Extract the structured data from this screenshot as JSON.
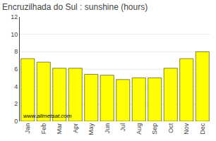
{
  "chart_data": {
    "type": "bar",
    "title": "Encruzilhada do Sul : sunshine (hours)",
    "categories": [
      "Jan",
      "Feb",
      "Mar",
      "Apr",
      "May",
      "Jun",
      "Jul",
      "Aug",
      "Sep",
      "Oct",
      "Nov",
      "Dec"
    ],
    "values": [
      7.2,
      6.8,
      6.1,
      6.1,
      5.4,
      5.3,
      4.8,
      5.0,
      5.0,
      6.1,
      7.2,
      8.0
    ],
    "color": "#ffff00",
    "ylim": [
      0,
      12
    ],
    "yticks": [
      0,
      2,
      4,
      6,
      8,
      10,
      12
    ],
    "grid": true,
    "annotation": "www.allmetsat.com"
  }
}
